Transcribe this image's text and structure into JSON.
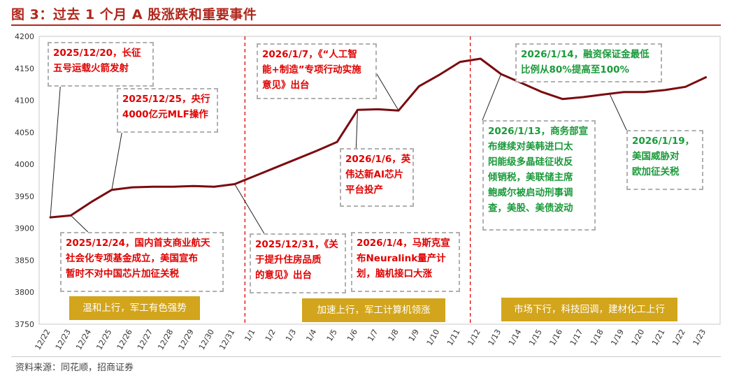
{
  "title": "图 3：过去 1 个月 A 股涨跌和重要事件",
  "source": "资料来源：同花顺，招商证券",
  "colors": {
    "line": "#7a0b10",
    "accent": "#b0261b",
    "divider": "#e00000",
    "red_text": "#e00000",
    "green_text": "#1a9a3a",
    "phase_bg": "#d2a51c"
  },
  "chart_data": {
    "type": "line",
    "title": "",
    "xlabel": "",
    "ylabel": "",
    "ylim": [
      3750,
      4200
    ],
    "yticks": [
      3750,
      3800,
      3850,
      3900,
      3950,
      4000,
      4050,
      4100,
      4150,
      4200
    ],
    "grid": false,
    "categories": [
      "12/22",
      "12/23",
      "12/24",
      "12/25",
      "12/26",
      "12/27",
      "12/28",
      "12/29",
      "12/30",
      "12/31",
      "1/1",
      "1/2",
      "1/3",
      "1/4",
      "1/5",
      "1/6",
      "1/7",
      "1/8",
      "1/9",
      "1/10",
      "1/11",
      "1/12",
      "1/13",
      "1/14",
      "1/15",
      "1/16",
      "1/17",
      "1/18",
      "1/19",
      "1/20",
      "1/21",
      "1/22",
      "1/23"
    ],
    "series": [
      {
        "values": [
          3917,
          3920,
          3941,
          3960,
          3964,
          3965,
          3965,
          3966,
          3965,
          3969,
          3982,
          3995,
          4008,
          4021,
          4035,
          4085,
          4086,
          4084,
          4122,
          4140,
          4160,
          4165,
          4141,
          4127,
          4113,
          4102,
          4105,
          4109,
          4113,
          4113,
          4116,
          4121,
          4136
        ]
      }
    ]
  },
  "annotations": [
    {
      "text": "2025/12/20，长征\n五号运载火箭发射",
      "color": "red"
    },
    {
      "text": "2025/12/25，央行\n4000亿元MLF操作",
      "color": "red"
    },
    {
      "text": "2026/1/7，《“人工智\n能+制造”专项行动实施\n意见》出台",
      "color": "red"
    },
    {
      "text": "2026/1/6，英\n伟达新AI芯片\n平台投产",
      "color": "red"
    },
    {
      "text": "2025/12/24，国内首支商业航天\n社会化专项基金成立，美国宣布\n暂时不对中国芯片加征关税",
      "color": "red"
    },
    {
      "text": "2025/12/31，《关\n于提升住房品质\n的意见》出台",
      "color": "red"
    },
    {
      "text": "2026/1/4，马斯克宣\n布Neuralink量产计\n划，脑机接口大涨",
      "color": "red"
    },
    {
      "text": "2026/1/14，融资保证金最低\n比例从80%提高至100%",
      "color": "green"
    },
    {
      "text": "2026/1/13，商务部宣\n布继续对美韩进口太\n阳能级多晶硅征收反\n倾销税，美联储主席\n鲍威尔被启动刑事调\n查，美股、美债波动",
      "color": "green"
    },
    {
      "text": "2026/1/19，\n美国威胁对\n欧加征关税",
      "color": "green"
    }
  ],
  "phases": [
    "温和上行，军工有色强势",
    "加速上行，军工计算机领涨",
    "市场下行，科技回调，建材化工上行"
  ]
}
